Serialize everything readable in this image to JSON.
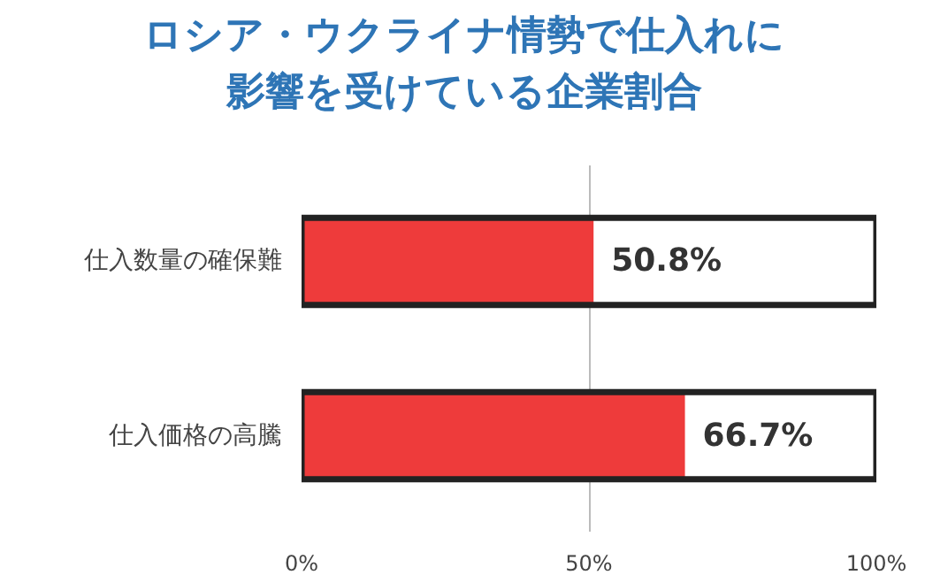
{
  "chart_data": {
    "type": "bar",
    "orientation": "horizontal",
    "title": "ロシア・ウクライナ情勢で仕入れに影響を受けている企業割合",
    "categories": [
      "仕入数量の確保難",
      "仕入価格の高騰"
    ],
    "values": [
      50.8,
      66.7
    ],
    "color": "#ee3b3b",
    "value_labels": [
      "50.8%",
      "66.7%"
    ],
    "xlim": [
      0,
      100
    ],
    "xticks": [
      {
        "value": 0,
        "label": "0%"
      },
      {
        "value": 50,
        "label": "50%"
      },
      {
        "value": 100,
        "label": "100%"
      }
    ],
    "grid": "x"
  }
}
